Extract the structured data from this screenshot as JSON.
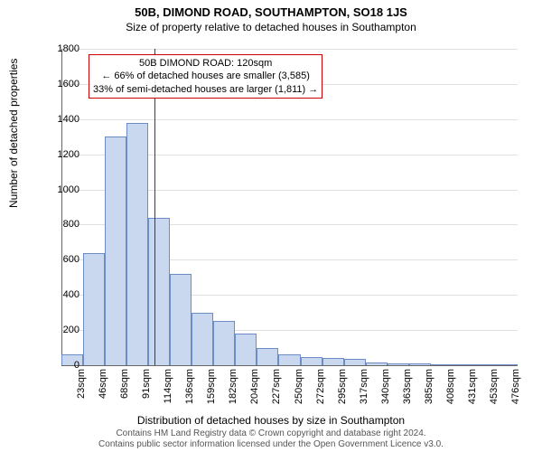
{
  "title": "50B, DIMOND ROAD, SOUTHAMPTON, SO18 1JS",
  "subtitle": "Size of property relative to detached houses in Southampton",
  "ylabel": "Number of detached properties",
  "xlabel": "Distribution of detached houses by size in Southampton",
  "title_fontsize": 13,
  "subtitle_fontsize": 12,
  "label_fontsize": 12,
  "tick_fontsize": 11,
  "annotation_fontsize": 11,
  "footer_fontsize": 10,
  "chart": {
    "type": "histogram",
    "ylim": [
      0,
      1800
    ],
    "ytick_step": 200,
    "yticks": [
      0,
      200,
      400,
      600,
      800,
      1000,
      1200,
      1400,
      1600,
      1800
    ],
    "categories": [
      "23sqm",
      "46sqm",
      "68sqm",
      "91sqm",
      "114sqm",
      "136sqm",
      "159sqm",
      "182sqm",
      "204sqm",
      "227sqm",
      "250sqm",
      "272sqm",
      "295sqm",
      "317sqm",
      "340sqm",
      "363sqm",
      "385sqm",
      "408sqm",
      "431sqm",
      "453sqm",
      "476sqm"
    ],
    "values": [
      60,
      640,
      1300,
      1380,
      840,
      520,
      300,
      250,
      180,
      100,
      60,
      45,
      40,
      35,
      15,
      10,
      8,
      5,
      0,
      0,
      2
    ],
    "bar_fill": "#c9d8ef",
    "bar_stroke": "#6b8cc4",
    "bar_width_ratio": 1.0,
    "background_color": "#ffffff",
    "grid_color": "#e0e0e0",
    "axis_color": "#666666"
  },
  "annotation": {
    "line1": "50B DIMOND ROAD: 120sqm",
    "line2": "← 66% of detached houses are smaller (3,585)",
    "line3": "33% of semi-detached houses are larger (1,811) →",
    "marker_color": "#cc0000",
    "marker_category_index": 4.3,
    "box_border": "#cc0000"
  },
  "footer": {
    "line1": "Contains HM Land Registry data © Crown copyright and database right 2024.",
    "line2": "Contains public sector information licensed under the Open Government Licence v3.0."
  }
}
